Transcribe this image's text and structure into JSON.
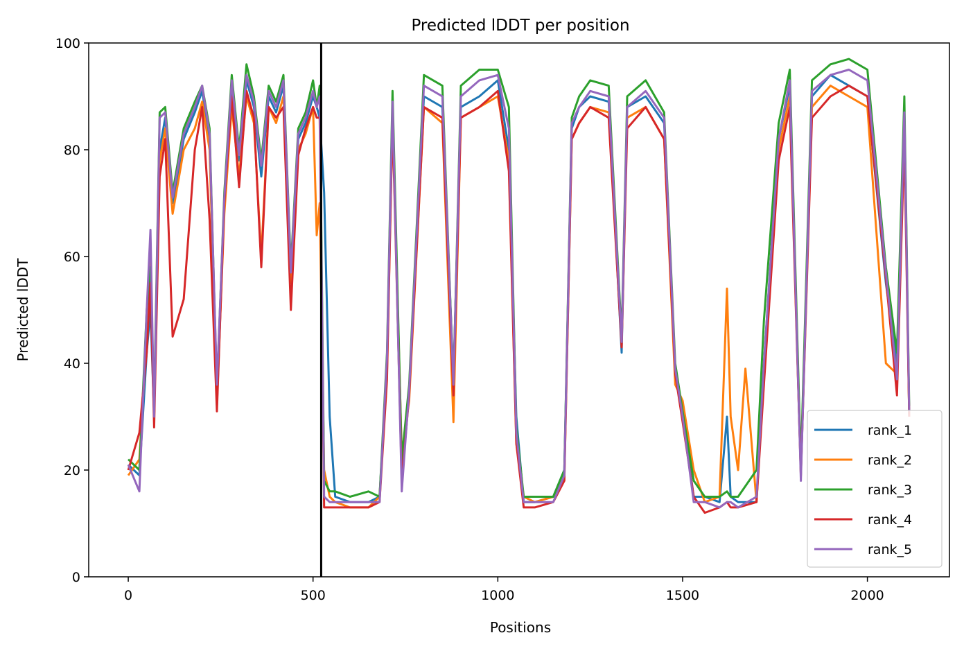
{
  "chart_data": {
    "type": "line",
    "title": "Predicted lDDT per position",
    "xlabel": "Positions",
    "ylabel": "Predicted lDDT",
    "xlim": [
      -107,
      2222
    ],
    "ylim": [
      0,
      100
    ],
    "xticks": [
      0,
      500,
      1000,
      1500,
      2000
    ],
    "yticks": [
      0,
      20,
      40,
      60,
      80,
      100
    ],
    "grid": false,
    "legend_position": "lower-right",
    "vline": {
      "x": 522,
      "color": "#000000"
    },
    "series": [
      {
        "name": "rank_1",
        "color": "#1f77b4",
        "x": [
          0,
          30,
          50,
          60,
          70,
          85,
          100,
          120,
          150,
          180,
          200,
          220,
          240,
          260,
          280,
          300,
          320,
          340,
          360,
          380,
          400,
          420,
          440,
          460,
          480,
          500,
          510,
          518,
          530,
          545,
          560,
          600,
          650,
          680,
          700,
          715,
          740,
          760,
          800,
          850,
          880,
          900,
          950,
          1000,
          1030,
          1050,
          1070,
          1100,
          1150,
          1180,
          1200,
          1220,
          1250,
          1300,
          1335,
          1350,
          1400,
          1450,
          1480,
          1500,
          1530,
          1560,
          1600,
          1620,
          1630,
          1650,
          1700,
          1720,
          1760,
          1790,
          1820,
          1850,
          1900,
          1950,
          2000,
          2050,
          2080,
          2100,
          2113
        ],
        "y": [
          21,
          19,
          42,
          50,
          30,
          80,
          86,
          70,
          82,
          87,
          91,
          82,
          32,
          70,
          91,
          78,
          93,
          88,
          75,
          90,
          87,
          92,
          57,
          82,
          85,
          90,
          88,
          86,
          72,
          30,
          15,
          14,
          14,
          15,
          40,
          88,
          20,
          35,
          90,
          88,
          37,
          88,
          90,
          93,
          80,
          30,
          14,
          14,
          15,
          20,
          84,
          88,
          90,
          89,
          42,
          88,
          90,
          85,
          38,
          30,
          15,
          15,
          14,
          30,
          15,
          14,
          14,
          40,
          82,
          92,
          20,
          90,
          94,
          92,
          90,
          55,
          40,
          88,
          30
        ]
      },
      {
        "name": "rank_2",
        "color": "#ff7f0e",
        "x": [
          0,
          30,
          50,
          60,
          70,
          85,
          100,
          120,
          150,
          180,
          200,
          220,
          240,
          260,
          280,
          300,
          320,
          340,
          360,
          380,
          400,
          420,
          440,
          460,
          480,
          500,
          510,
          518,
          530,
          545,
          560,
          600,
          650,
          680,
          700,
          715,
          740,
          760,
          800,
          850,
          880,
          900,
          950,
          1000,
          1030,
          1050,
          1070,
          1100,
          1150,
          1180,
          1200,
          1220,
          1250,
          1300,
          1335,
          1350,
          1400,
          1450,
          1480,
          1500,
          1530,
          1560,
          1600,
          1620,
          1630,
          1650,
          1670,
          1700,
          1720,
          1760,
          1790,
          1820,
          1850,
          1900,
          1950,
          2000,
          2050,
          2080,
          2100,
          2113
        ],
        "y": [
          19,
          22,
          45,
          60,
          30,
          78,
          84,
          68,
          80,
          84,
          89,
          80,
          33,
          68,
          88,
          75,
          90,
          85,
          60,
          88,
          85,
          90,
          55,
          80,
          83,
          88,
          64,
          70,
          20,
          15,
          14,
          13,
          13,
          15,
          38,
          86,
          23,
          33,
          88,
          85,
          29,
          86,
          88,
          90,
          78,
          25,
          15,
          14,
          15,
          18,
          82,
          85,
          88,
          87,
          44,
          86,
          88,
          82,
          36,
          33,
          20,
          14,
          15,
          54,
          30,
          20,
          39,
          14,
          38,
          80,
          90,
          19,
          88,
          92,
          90,
          88,
          40,
          38,
          86,
          30
        ]
      },
      {
        "name": "rank_3",
        "color": "#2ca02c",
        "x": [
          0,
          30,
          50,
          60,
          70,
          85,
          100,
          120,
          150,
          180,
          200,
          220,
          240,
          260,
          280,
          300,
          320,
          340,
          360,
          380,
          400,
          420,
          440,
          460,
          480,
          500,
          510,
          518,
          530,
          545,
          560,
          600,
          650,
          680,
          700,
          715,
          740,
          760,
          800,
          850,
          880,
          900,
          950,
          1000,
          1030,
          1050,
          1070,
          1100,
          1150,
          1180,
          1200,
          1220,
          1250,
          1300,
          1335,
          1350,
          1400,
          1450,
          1480,
          1500,
          1530,
          1560,
          1600,
          1620,
          1630,
          1650,
          1700,
          1720,
          1760,
          1790,
          1820,
          1850,
          1900,
          1950,
          2000,
          2050,
          2080,
          2100,
          2113
        ],
        "y": [
          22,
          20,
          50,
          58,
          32,
          87,
          88,
          72,
          84,
          89,
          92,
          84,
          35,
          72,
          94,
          80,
          96,
          90,
          78,
          92,
          89,
          94,
          58,
          84,
          87,
          93,
          88,
          92,
          18,
          16,
          16,
          15,
          16,
          15,
          42,
          91,
          22,
          36,
          94,
          92,
          36,
          92,
          95,
          95,
          88,
          28,
          15,
          15,
          15,
          20,
          86,
          90,
          93,
          92,
          45,
          90,
          93,
          87,
          40,
          31,
          18,
          15,
          15,
          16,
          15,
          15,
          20,
          48,
          85,
          95,
          21,
          93,
          96,
          97,
          95,
          58,
          42,
          90,
          32
        ]
      },
      {
        "name": "rank_4",
        "color": "#d62728",
        "x": [
          0,
          30,
          50,
          60,
          70,
          85,
          100,
          120,
          150,
          180,
          200,
          220,
          240,
          260,
          280,
          300,
          320,
          340,
          360,
          380,
          400,
          420,
          440,
          460,
          480,
          500,
          510,
          518,
          530,
          545,
          560,
          600,
          650,
          680,
          700,
          715,
          740,
          760,
          800,
          850,
          880,
          900,
          950,
          1000,
          1030,
          1050,
          1070,
          1100,
          1150,
          1180,
          1200,
          1220,
          1250,
          1300,
          1335,
          1350,
          1400,
          1450,
          1480,
          1500,
          1530,
          1560,
          1600,
          1620,
          1630,
          1650,
          1700,
          1720,
          1760,
          1790,
          1820,
          1850,
          1900,
          1950,
          2000,
          2050,
          2080,
          2100,
          2113
        ],
        "y": [
          20,
          27,
          42,
          55,
          28,
          75,
          82,
          45,
          52,
          80,
          88,
          67,
          31,
          70,
          90,
          73,
          91,
          86,
          58,
          88,
          86,
          88,
          50,
          79,
          84,
          88,
          86,
          86,
          13,
          13,
          13,
          13,
          13,
          14,
          37,
          86,
          18,
          34,
          88,
          86,
          34,
          86,
          88,
          91,
          76,
          25,
          13,
          13,
          14,
          18,
          82,
          85,
          88,
          86,
          43,
          84,
          88,
          82,
          38,
          29,
          15,
          12,
          13,
          14,
          13,
          13,
          14,
          36,
          78,
          88,
          19,
          86,
          90,
          92,
          90,
          56,
          34,
          82,
          30
        ]
      },
      {
        "name": "rank_5",
        "color": "#9467bd",
        "x": [
          0,
          30,
          50,
          60,
          70,
          85,
          100,
          120,
          150,
          180,
          200,
          220,
          240,
          260,
          280,
          300,
          320,
          340,
          360,
          380,
          400,
          420,
          440,
          460,
          480,
          500,
          510,
          518,
          530,
          545,
          560,
          600,
          650,
          680,
          700,
          715,
          740,
          760,
          800,
          850,
          880,
          900,
          950,
          1000,
          1030,
          1050,
          1070,
          1100,
          1150,
          1180,
          1200,
          1220,
          1250,
          1300,
          1335,
          1350,
          1400,
          1450,
          1480,
          1500,
          1530,
          1560,
          1600,
          1620,
          1630,
          1650,
          1700,
          1720,
          1760,
          1790,
          1820,
          1850,
          1900,
          1950,
          2000,
          2050,
          2080,
          2100,
          2113
        ],
        "y": [
          21,
          16,
          50,
          65,
          30,
          86,
          87,
          71,
          83,
          88,
          92,
          83,
          36,
          71,
          93,
          79,
          94,
          89,
          77,
          91,
          88,
          93,
          57,
          83,
          86,
          91,
          88,
          90,
          15,
          14,
          14,
          14,
          14,
          14,
          41,
          89,
          16,
          35,
          92,
          90,
          36,
          90,
          93,
          94,
          84,
          27,
          14,
          14,
          14,
          19,
          85,
          88,
          91,
          90,
          44,
          88,
          91,
          86,
          39,
          30,
          14,
          14,
          13,
          14,
          14,
          13,
          15,
          40,
          82,
          93,
          18,
          91,
          94,
          95,
          93,
          57,
          37,
          87,
          31
        ]
      }
    ]
  }
}
